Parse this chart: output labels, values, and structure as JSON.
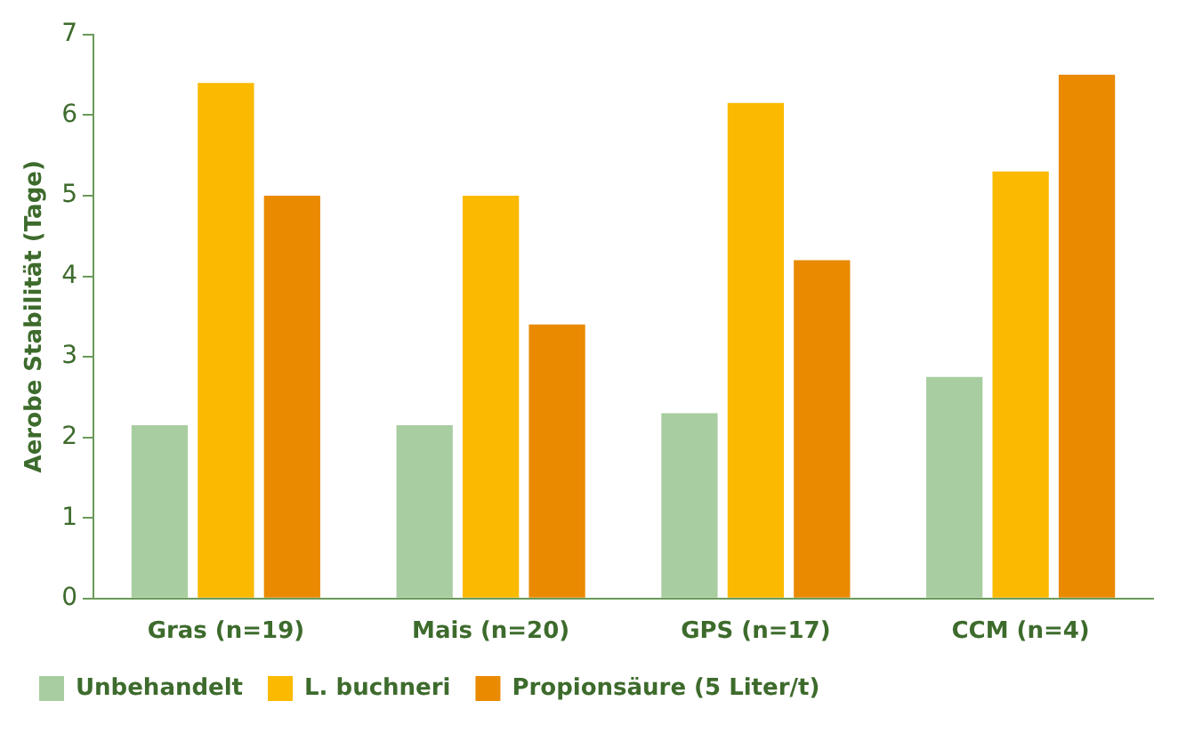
{
  "chart_data": {
    "type": "bar",
    "ylabel": "Aerobe Stabilität (Tage)",
    "categories": [
      "Gras (n=19)",
      "Mais (n=20)",
      "GPS (n=17)",
      "CCM (n=4)"
    ],
    "series": [
      {
        "name": "Unbehandelt",
        "color": "#a8cda0",
        "values": [
          2.15,
          2.15,
          2.3,
          2.75
        ]
      },
      {
        "name": "L. buchneri",
        "color": "#fbb900",
        "values": [
          6.4,
          5.0,
          6.15,
          5.3
        ]
      },
      {
        "name": "Propionsäure (5 Liter/t)",
        "color": "#e98a00",
        "values": [
          5.0,
          3.4,
          4.2,
          6.5
        ]
      }
    ],
    "ylim": [
      0,
      7
    ],
    "yticks": [
      0,
      1,
      2,
      3,
      4,
      5,
      6,
      7
    ],
    "grid": false,
    "legend": "bottom left"
  }
}
